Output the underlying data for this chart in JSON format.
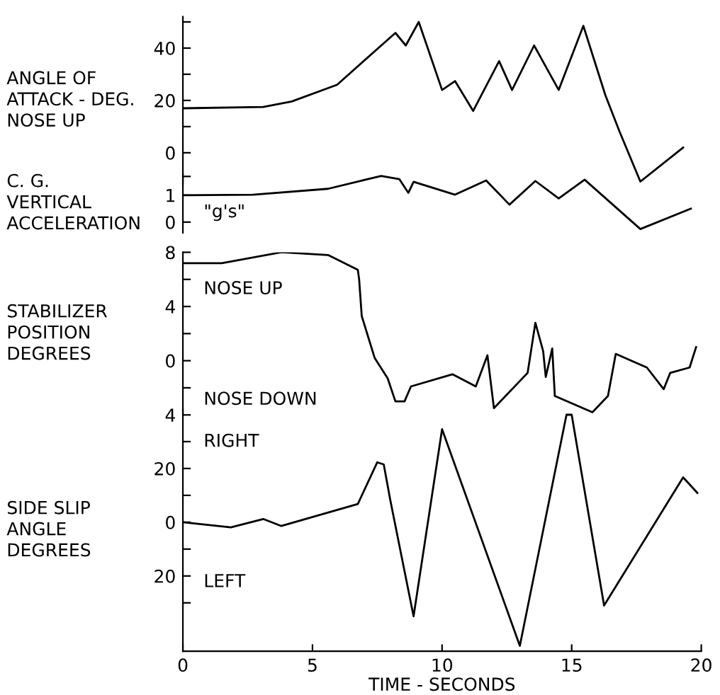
{
  "chart_data": [
    {
      "type": "line",
      "ylabel": "ANGLE OF\nATTACK - DEG.\nNOSE UP",
      "xlim": [
        0,
        20
      ],
      "ylim": [
        -12,
        52
      ],
      "yticks": [
        0,
        {
          "value": 10,
          "label": null
        },
        20,
        {
          "value": 30,
          "label": null
        },
        40,
        {
          "value": 50,
          "label": null
        }
      ],
      "tick_labels": "y",
      "grid": false,
      "legend": false,
      "x": [
        0,
        3.1,
        4.2,
        5.95,
        8.2,
        8.6,
        9.1,
        10.0,
        10.5,
        11.2,
        12.2,
        12.7,
        13.55,
        14.5,
        15.45,
        16.3,
        16.85,
        17.65,
        19.3
      ],
      "series": [
        {
          "color": "#000000",
          "values": [
            17,
            17.5,
            19.6,
            26,
            45.8,
            41,
            50,
            24,
            27.4,
            16,
            35,
            24,
            41,
            24,
            48.5,
            22,
            8,
            -11,
            2
          ]
        }
      ]
    },
    {
      "type": "line",
      "ylabel": "C. G.\nVERTICAL\nACCELERATION",
      "annotations": [
        "\"g's\""
      ],
      "xlim": [
        0,
        20
      ],
      "ylim": [
        -0.4,
        1.8
      ],
      "yticks": [
        0,
        1,
        {
          "value": 1.7,
          "label": null
        }
      ],
      "tick_labels": "y",
      "grid": false,
      "legend": false,
      "x": [
        0,
        2.7,
        5.6,
        7.65,
        8.35,
        8.7,
        8.9,
        10.5,
        11.7,
        12.6,
        13.6,
        14.5,
        15.5,
        17.65,
        19.6
      ],
      "series": [
        {
          "color": "#000000",
          "values": [
            1.0,
            1.02,
            1.24,
            1.72,
            1.6,
            1.09,
            1.5,
            1.02,
            1.55,
            0.65,
            1.53,
            0.88,
            1.58,
            -0.26,
            0.5
          ]
        }
      ]
    },
    {
      "type": "line",
      "ylabel": "STABILIZER\nPOSITION\nDEGREES",
      "annotations": [
        "NOSE UP",
        "NOSE DOWN"
      ],
      "xlim": [
        0,
        20
      ],
      "ylim": [
        -4,
        8
      ],
      "yticks": [
        8,
        {
          "value": 6,
          "label": null
        },
        4,
        {
          "value": 2,
          "label": null
        },
        0,
        {
          "value": -2,
          "label": null
        },
        {
          "value": -4,
          "label": "4"
        }
      ],
      "tick_labels": "y",
      "grid": false,
      "legend": false,
      "x": [
        0,
        1.5,
        3.8,
        5.6,
        6.75,
        6.8,
        6.9,
        7.4,
        7.9,
        8.2,
        8.55,
        8.8,
        10.4,
        11.3,
        11.75,
        12.0,
        13.3,
        13.6,
        13.9,
        14.0,
        14.25,
        14.35,
        15.8,
        16.4,
        16.7,
        17.9,
        18.55,
        18.8,
        19.55,
        19.8
      ],
      "series": [
        {
          "color": "#000000",
          "values": [
            7.2,
            7.2,
            8.0,
            7.8,
            6.7,
            6.0,
            3.3,
            0.2,
            -1.3,
            -3.0,
            -3.0,
            -1.9,
            -1.0,
            -1.9,
            0.4,
            -3.5,
            -0.9,
            2.8,
            0.7,
            -1.2,
            0.9,
            -2.6,
            -3.8,
            -2.6,
            0.5,
            -0.5,
            -2.1,
            -0.9,
            -0.5,
            1.0
          ]
        }
      ]
    },
    {
      "type": "line",
      "ylabel": "SIDE SLIP\nANGLE\nDEGREES",
      "xlabel": "TIME - SECONDS",
      "annotations": [
        "RIGHT",
        "LEFT"
      ],
      "xlim": [
        0,
        20
      ],
      "xticks": [
        0,
        5,
        10,
        15,
        20
      ],
      "ylim": [
        -48,
        42
      ],
      "yticks": [
        {
          "value": 30,
          "label": null
        },
        20,
        {
          "value": 10,
          "label": null
        },
        0,
        {
          "value": -10,
          "label": null
        },
        {
          "value": -20,
          "label": "20"
        },
        {
          "value": -30,
          "label": null
        }
      ],
      "grid": false,
      "legend": false,
      "x": [
        0,
        1.85,
        3.1,
        3.8,
        6.75,
        7.5,
        7.75,
        8.0,
        8.9,
        10.0,
        13.0,
        14.8,
        15.0,
        16.25,
        19.3,
        19.85
      ],
      "series": [
        {
          "color": "#000000",
          "values": [
            0,
            -1.9,
            1.2,
            -1.4,
            6.8,
            22.3,
            21.5,
            8.3,
            -35,
            34.6,
            -46,
            40,
            40,
            -31,
            16.7,
            10.9
          ]
        }
      ]
    }
  ]
}
